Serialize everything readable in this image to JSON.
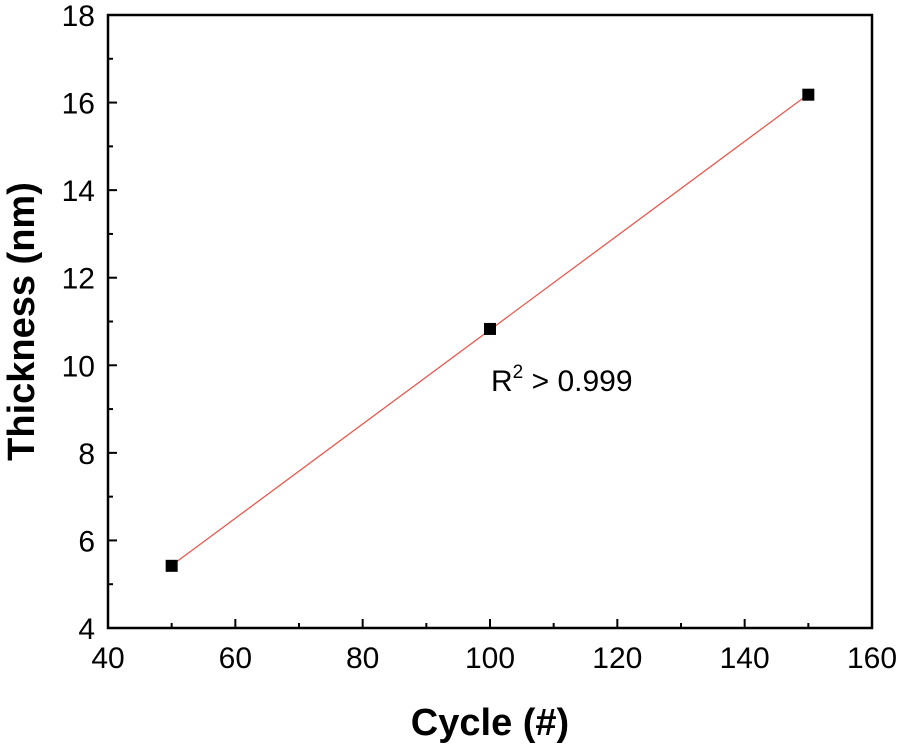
{
  "chart_data": {
    "type": "scatter",
    "x": [
      50,
      100,
      150
    ],
    "y": [
      5.42,
      10.83,
      16.18
    ],
    "fit": "linear",
    "fit_color": "#e8594f",
    "marker_color": "#000000",
    "xlabel": "Cycle (#)",
    "ylabel": "Thickness (nm)",
    "xlim": [
      40,
      160
    ],
    "ylim": [
      4,
      18
    ],
    "xticks": [
      40,
      60,
      80,
      100,
      120,
      140,
      160
    ],
    "yticks": [
      4,
      6,
      8,
      10,
      12,
      14,
      16,
      18
    ],
    "annotation": {
      "base": "R",
      "sup": "2",
      "rest": " > 0.999"
    },
    "grid": false,
    "legend": "none"
  }
}
